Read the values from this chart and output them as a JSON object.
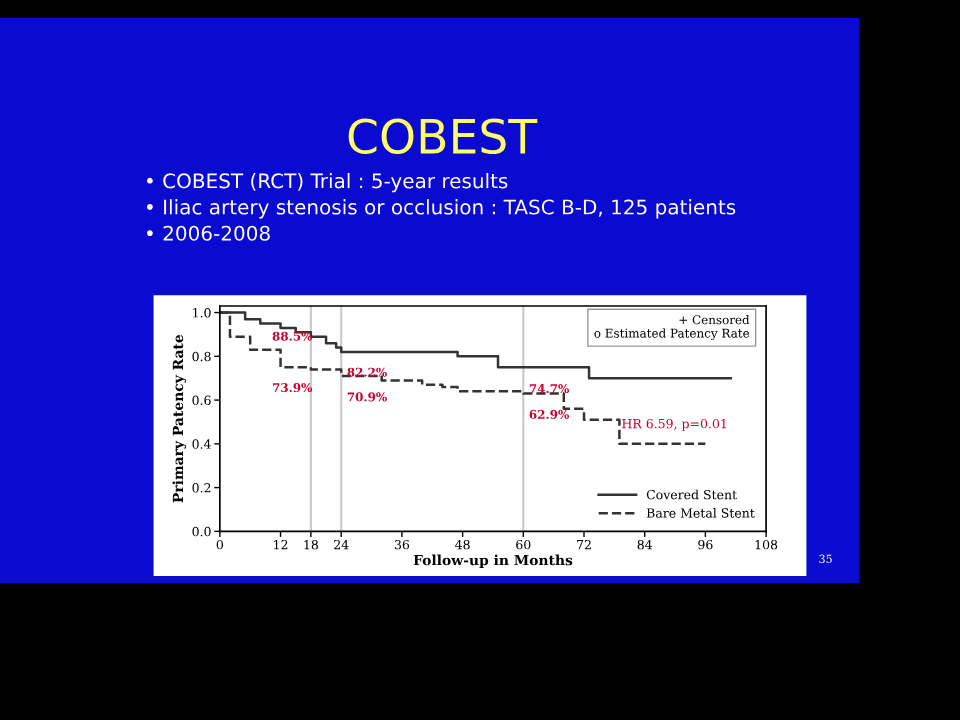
{
  "chart_data": {
    "type": "step",
    "title": "COBEST",
    "subtitle": "• COBEST (RCT) Trial : 5-year results\n• Iliac artery stenosis or occlusion : TASC B-D, 125 patients\n• 2006-2008",
    "xlabel": "Follow-up in Months",
    "ylabel": "Primary Patency Rate",
    "series": [
      {
        "name": "Covered Stent",
        "color": "#333333",
        "line_style": "solid",
        "x": [
          0,
          5,
          8,
          12,
          15,
          18,
          21,
          23,
          24,
          47,
          55,
          73,
          101
        ],
        "values": [
          1.0,
          0.97,
          0.95,
          0.93,
          0.91,
          0.89,
          0.86,
          0.84,
          0.82,
          0.8,
          0.75,
          0.7,
          0.7
        ]
      },
      {
        "name": "Bare Metal Stent",
        "color": "#333333",
        "line_style": "dashed",
        "x": [
          0,
          2,
          6,
          12,
          18,
          24,
          32,
          40,
          44,
          47,
          60,
          68,
          72,
          79,
          96
        ],
        "values": [
          1.0,
          0.89,
          0.83,
          0.75,
          0.74,
          0.71,
          0.69,
          0.67,
          0.66,
          0.64,
          0.63,
          0.56,
          0.51,
          0.4,
          0.4
        ]
      }
    ],
    "xlim": [
      0,
      108
    ],
    "xticks": [
      0,
      12,
      18,
      24,
      36,
      48,
      60,
      72,
      84,
      96,
      108
    ],
    "ylim": [
      0,
      1.03
    ],
    "yticks": [
      {
        "value": 0,
        "label": "0.0"
      },
      {
        "value": 0.2,
        "label": "0.2"
      },
      {
        "value": 0.4,
        "label": "0.4"
      },
      {
        "value": 0.6,
        "label": "0.6"
      },
      {
        "value": 0.8,
        "label": "0.8"
      },
      {
        "value": 1.0,
        "label": "1.0"
      }
    ],
    "ref_lines": [
      {
        "axis": "x",
        "value": 18,
        "color": "#cccccc"
      },
      {
        "axis": "x",
        "value": 24,
        "color": "#cccccc"
      },
      {
        "axis": "x",
        "value": 60,
        "color": "#cccccc"
      }
    ],
    "annotations": [
      {
        "text": "88.5%",
        "x": 18,
        "y": 0.885
      },
      {
        "text": "73.9%",
        "x": 18,
        "y": 0.739
      },
      {
        "text": "82.2%",
        "x": 24,
        "y": 0.822
      },
      {
        "text": "70.9%",
        "x": 24,
        "y": 0.709
      },
      {
        "text": "74.7%",
        "x": 60,
        "y": 0.747
      },
      {
        "text": "62.9%",
        "x": 60,
        "y": 0.629
      },
      "HR 6.59, p=0.01",
      "+ Censored\no Estimated Patency Rate",
      "35"
    ],
    "legend": "bottom right",
    "grid": false
  }
}
